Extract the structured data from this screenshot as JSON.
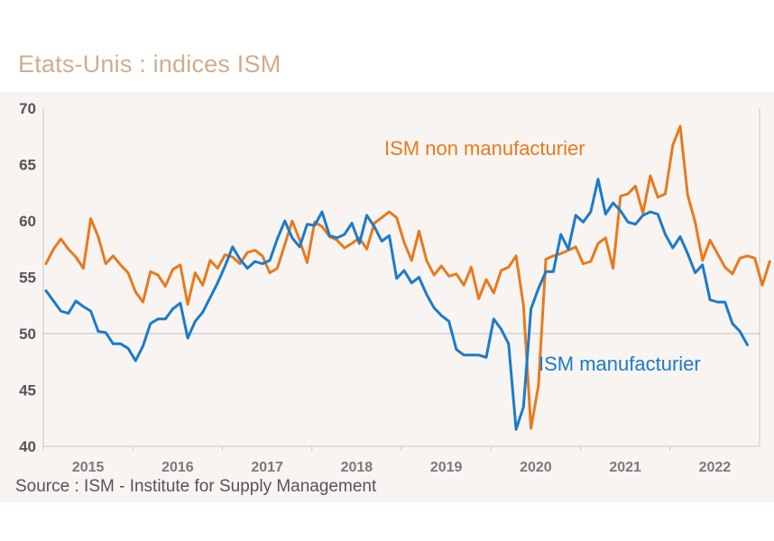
{
  "header": {
    "title": "Etats-Unis : indices ISM"
  },
  "footer": {
    "source": "Source : ISM - Institute for Supply Management"
  },
  "colors": {
    "non_manufacturing": "#e87a1e",
    "manufacturing": "#1b7bc9",
    "title": "#d4ab8c",
    "panel": "#f8f4f1"
  },
  "chart_data": {
    "type": "line",
    "title": "Etats-Unis : indices ISM",
    "xlabel": "",
    "ylabel": "",
    "ylim": [
      40,
      70
    ],
    "yticks": [
      "70",
      "65",
      "60",
      "55",
      "50",
      "45",
      "40"
    ],
    "ytick_values": [
      70,
      65,
      60,
      55,
      50,
      45,
      40
    ],
    "reference_line": 50,
    "x_start": "2015-01",
    "x_frequency": "monthly",
    "xticks": [
      "2015",
      "2016",
      "2017",
      "2018",
      "2019",
      "2020",
      "2021",
      "2022"
    ],
    "grid": false,
    "series": [
      {
        "name": "ISM non manufacturier",
        "label": "ISM non manufacturier",
        "color": "#e87a1e",
        "values": [
          56.2,
          57.5,
          58.4,
          57.5,
          56.8,
          55.8,
          60.2,
          58.6,
          56.2,
          56.9,
          56.1,
          55.4,
          53.7,
          52.8,
          55.5,
          55.2,
          54.2,
          55.7,
          56.1,
          52.6,
          55.4,
          54.3,
          56.5,
          55.8,
          57.0,
          56.8,
          56.2,
          57.2,
          57.4,
          56.9,
          55.4,
          55.8,
          57.9,
          60.0,
          58.3,
          56.3,
          59.9,
          59.5,
          58.6,
          58.3,
          57.6,
          58.0,
          58.5,
          57.5,
          59.8,
          60.3,
          60.8,
          60.3,
          58.1,
          56.5,
          59.1,
          56.5,
          55.2,
          56.0,
          55.1,
          55.3,
          54.3,
          55.9,
          53.1,
          54.8,
          53.6,
          55.6,
          55.9,
          56.9,
          52.5,
          41.6,
          45.4,
          56.6,
          56.9,
          57.1,
          57.4,
          57.7,
          56.2,
          56.4,
          58.0,
          58.5,
          55.8,
          62.2,
          62.4,
          63.1,
          60.7,
          64.0,
          62.1,
          62.4,
          66.7,
          68.4,
          62.3,
          59.9,
          56.5,
          58.3,
          57.1,
          55.9,
          55.3,
          56.7,
          56.9,
          56.7,
          54.3,
          56.4
        ]
      },
      {
        "name": "ISM manufacturier",
        "label": "ISM manufacturier",
        "color": "#1b7bc9",
        "values": [
          53.8,
          52.9,
          52.0,
          51.8,
          52.9,
          52.4,
          52.0,
          50.2,
          50.1,
          49.1,
          49.1,
          48.7,
          47.6,
          48.9,
          50.9,
          51.3,
          51.3,
          52.2,
          52.7,
          49.6,
          51.1,
          51.9,
          53.2,
          54.5,
          56.0,
          57.7,
          56.6,
          55.8,
          56.4,
          56.2,
          56.5,
          58.4,
          60.0,
          58.5,
          57.7,
          59.7,
          59.6,
          60.8,
          58.7,
          58.5,
          58.8,
          59.8,
          58.0,
          60.5,
          59.5,
          58.2,
          58.7,
          54.9,
          55.6,
          54.5,
          55.0,
          53.5,
          52.3,
          51.6,
          51.1,
          48.6,
          48.1,
          48.1,
          48.1,
          47.9,
          51.3,
          50.4,
          49.1,
          41.5,
          43.5,
          52.2,
          54.0,
          55.5,
          55.5,
          58.8,
          57.5,
          60.5,
          59.9,
          60.8,
          63.7,
          60.6,
          61.6,
          60.9,
          59.9,
          59.7,
          60.5,
          60.8,
          60.6,
          58.8,
          57.6,
          58.6,
          57.1,
          55.4,
          56.1,
          53.0,
          52.8,
          52.8,
          50.9,
          50.2,
          49.0
        ]
      }
    ]
  }
}
